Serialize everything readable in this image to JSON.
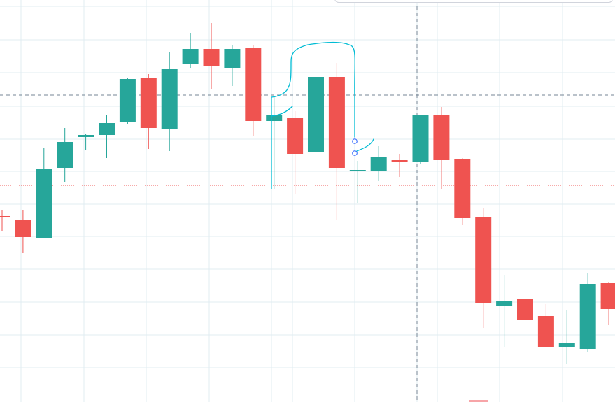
{
  "chart_data": {
    "type": "candlestick",
    "grid": true,
    "ylim": [
      0,
      575
    ],
    "colors": {
      "up": "#26a69a",
      "down": "#ef5350",
      "grid": "#e1ecf2",
      "crosshair": "#758696",
      "price_line": "#ef5350",
      "drawing": "#00bcd4"
    },
    "candles": [
      {
        "open": 266,
        "close": 264,
        "high": 275,
        "low": 245
      },
      {
        "open": 260,
        "close": 236,
        "high": 275,
        "low": 213
      },
      {
        "open": 234,
        "close": 333,
        "high": 364,
        "low": 234
      },
      {
        "open": 335,
        "close": 372,
        "high": 392,
        "low": 314
      },
      {
        "open": 379,
        "close": 382,
        "high": 383,
        "low": 360
      },
      {
        "open": 382,
        "close": 399,
        "high": 411,
        "low": 349
      },
      {
        "open": 400,
        "close": 462,
        "high": 463,
        "low": 398
      },
      {
        "open": 463,
        "close": 392,
        "high": 469,
        "low": 362
      },
      {
        "open": 391,
        "close": 477,
        "high": 501,
        "low": 359
      },
      {
        "open": 483,
        "close": 505,
        "high": 528,
        "low": 478
      },
      {
        "open": 505,
        "close": 480,
        "high": 542,
        "low": 447
      },
      {
        "open": 478,
        "close": 505,
        "high": 510,
        "low": 452
      },
      {
        "open": 507,
        "close": 402,
        "high": 510,
        "low": 381
      },
      {
        "open": 402,
        "close": 411,
        "high": 436,
        "low": 305
      },
      {
        "open": 406,
        "close": 355,
        "high": 416,
        "low": 298
      },
      {
        "open": 357,
        "close": 465,
        "high": 482,
        "low": 330
      },
      {
        "open": 465,
        "close": 334,
        "high": 485,
        "low": 260
      },
      {
        "open": 331,
        "close": 332,
        "high": 345,
        "low": 284
      },
      {
        "open": 331,
        "close": 350,
        "high": 366,
        "low": 316
      },
      {
        "open": 346,
        "close": 343,
        "high": 355,
        "low": 322
      },
      {
        "open": 343,
        "close": 410,
        "high": 411,
        "low": 340
      },
      {
        "open": 410,
        "close": 346,
        "high": 422,
        "low": 305
      },
      {
        "open": 347,
        "close": 263,
        "high": 349,
        "low": 253
      },
      {
        "open": 264,
        "close": 142,
        "high": 277,
        "low": 106
      },
      {
        "open": 138,
        "close": 144,
        "high": 182,
        "low": 78
      },
      {
        "open": 147,
        "close": 117,
        "high": 168,
        "low": 60
      },
      {
        "open": 123,
        "close": 79,
        "high": 140,
        "low": 79
      },
      {
        "open": 78,
        "close": 85,
        "high": 131,
        "low": 55
      },
      {
        "open": 76,
        "close": 169,
        "high": 184,
        "low": 72
      },
      {
        "open": 170,
        "close": 133,
        "high": 171,
        "low": 110
      }
    ]
  }
}
